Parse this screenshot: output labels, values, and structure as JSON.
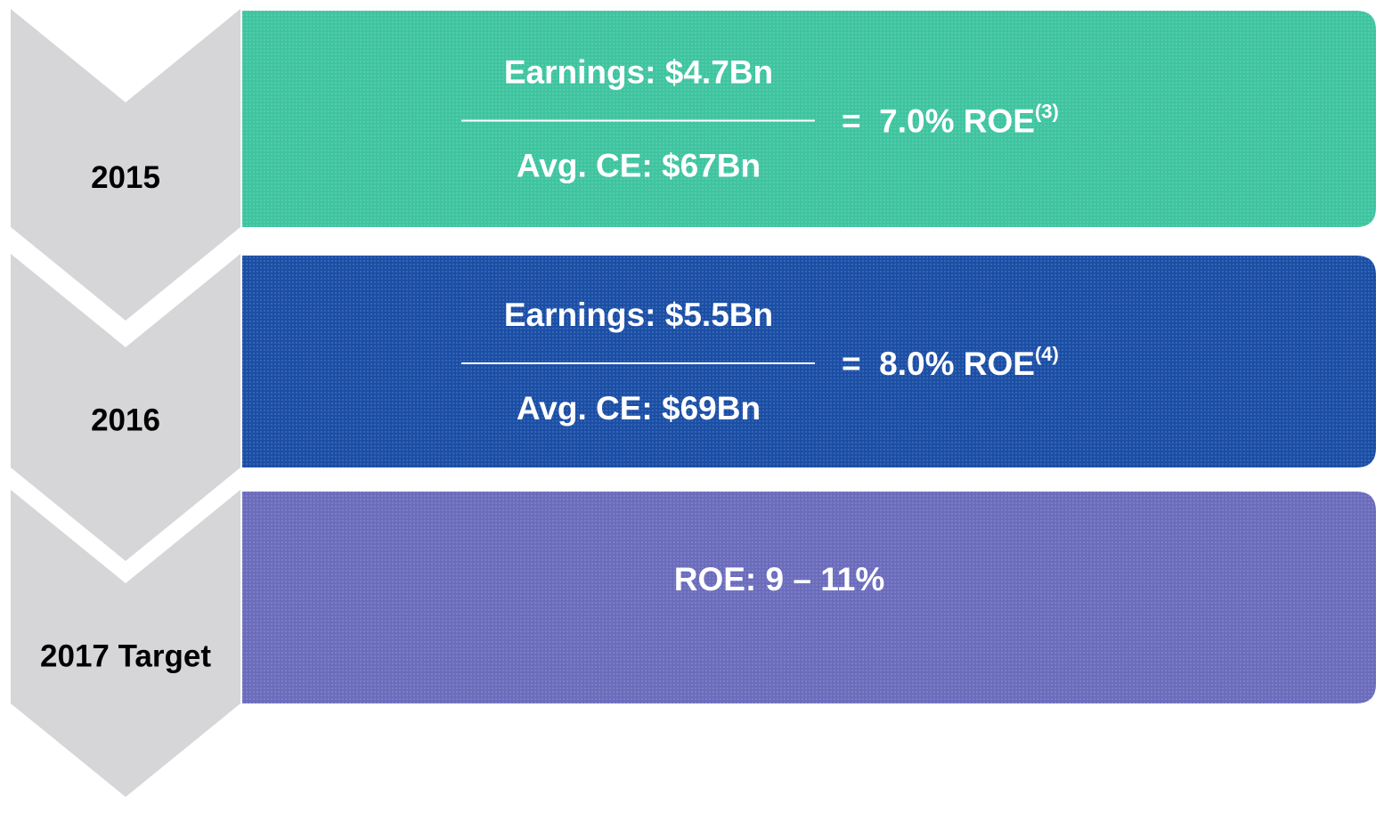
{
  "rows": [
    {
      "label": "2015",
      "numerator": "Earnings: $4.7Bn",
      "denominator": "Avg. CE: $67Bn",
      "result": "=  7.0% ROE",
      "note": "(3)"
    },
    {
      "label": "2016",
      "numerator": "Earnings: $5.5Bn",
      "denominator": "Avg. CE: $69Bn",
      "result": "=  8.0% ROE",
      "note": "(4)"
    },
    {
      "label": "2017 Target",
      "text": "ROE: 9 – 11%"
    }
  ]
}
